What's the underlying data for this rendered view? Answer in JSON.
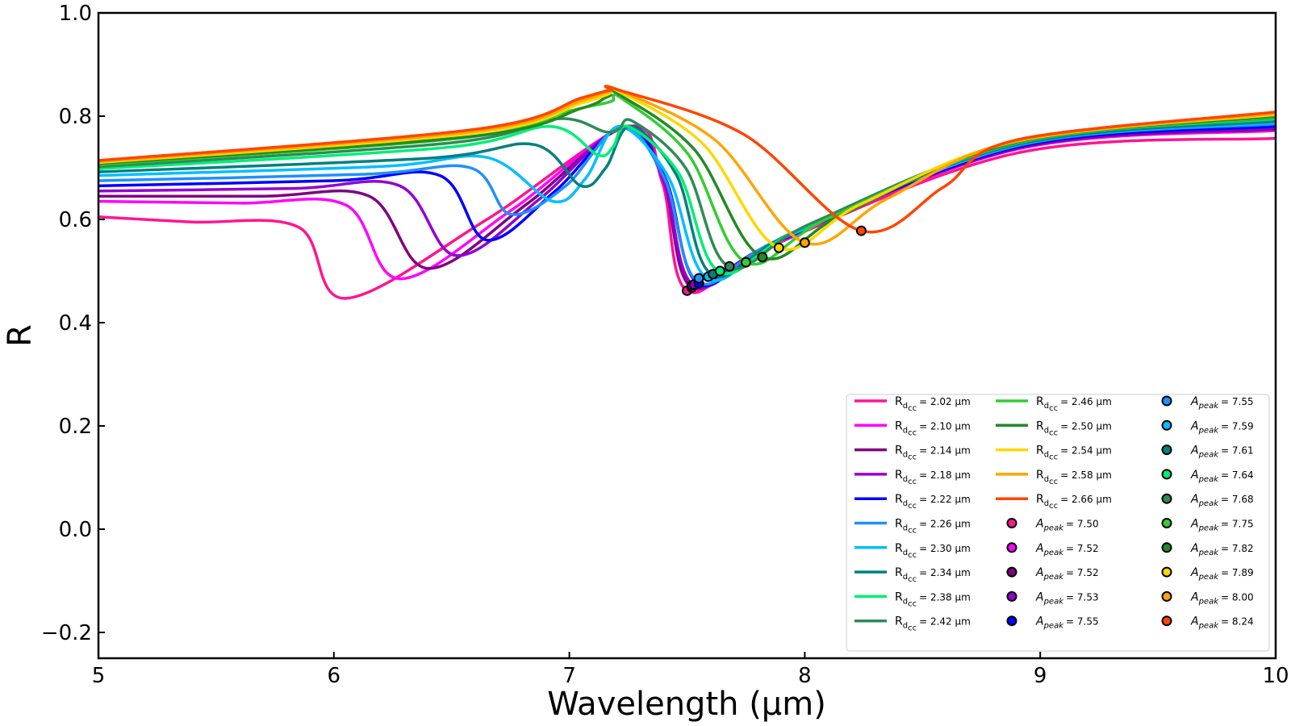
{
  "chart_data": {
    "type": "line",
    "title": "",
    "xlabel": "Wavelength (μm)",
    "ylabel": "R",
    "xlim": [
      5,
      10
    ],
    "ylim": [
      -0.25,
      1.0
    ],
    "xticks": [
      5,
      6,
      7,
      8,
      9,
      10
    ],
    "xtick_labels": [
      "5",
      "6",
      "7",
      "8",
      "9",
      "10"
    ],
    "yticks": [
      -0.2,
      0.0,
      0.2,
      0.4,
      0.6,
      0.8,
      1.0
    ],
    "ytick_labels": [
      "−0.2",
      "0.0",
      "0.2",
      "0.4",
      "0.6",
      "0.8",
      "1.0"
    ],
    "grid": false,
    "legend_position": "lower-right",
    "legend_columns": 3,
    "series": [
      {
        "legend_main": "R",
        "legend_sub": "d",
        "legend_subsub": "cc",
        "legend_value": "= 2.02 μm",
        "color": "#ff1493",
        "edge": 0.605,
        "shoulder": [
          5.85,
          0.585
        ],
        "dip": [
          6.05,
          0.447
        ],
        "rise": 0.6,
        "peak": [
          7.25,
          0.78
        ],
        "min": [
          7.5,
          0.462
        ],
        "end": 0.757
      },
      {
        "legend_main": "R",
        "legend_sub": "d",
        "legend_subsub": "cc",
        "legend_value": "= 2.10 μm",
        "color": "#ff00ff",
        "edge": 0.635,
        "shoulder": [
          6.05,
          0.628
        ],
        "dip": [
          6.28,
          0.485
        ],
        "rise": 0.62,
        "peak": [
          7.24,
          0.78
        ],
        "min": [
          7.52,
          0.468
        ],
        "end": 0.772
      },
      {
        "legend_main": "R",
        "legend_sub": "d",
        "legend_subsub": "cc",
        "legend_value": "= 2.14 μm",
        "color": "#800080",
        "edge": 0.645,
        "shoulder": [
          6.15,
          0.645
        ],
        "dip": [
          6.4,
          0.505
        ],
        "rise": 0.63,
        "peak": [
          7.24,
          0.78
        ],
        "min": [
          7.52,
          0.47
        ],
        "end": 0.775
      },
      {
        "legend_main": "R",
        "legend_sub": "d",
        "legend_subsub": "cc",
        "legend_value": "= 2.18 μm",
        "color": "#9400d3",
        "edge": 0.655,
        "shoulder": [
          6.28,
          0.665
        ],
        "dip": [
          6.52,
          0.53
        ],
        "rise": 0.64,
        "peak": [
          7.23,
          0.78
        ],
        "min": [
          7.53,
          0.472
        ],
        "end": 0.778
      },
      {
        "legend_main": "R",
        "legend_sub": "d",
        "legend_subsub": "cc",
        "legend_value": "= 2.22 μm",
        "color": "#0000ff",
        "edge": 0.665,
        "shoulder": [
          6.45,
          0.685
        ],
        "dip": [
          6.65,
          0.56
        ],
        "rise": 0.655,
        "peak": [
          7.23,
          0.78
        ],
        "min": [
          7.55,
          0.475
        ],
        "end": 0.78
      },
      {
        "legend_main": "R",
        "legend_sub": "d",
        "legend_subsub": "cc",
        "legend_value": "= 2.26 μm",
        "color": "#1e90ff",
        "edge": 0.675,
        "shoulder": [
          6.58,
          0.7
        ],
        "dip": [
          6.75,
          0.61
        ],
        "rise": 0.665,
        "peak": [
          7.22,
          0.78
        ],
        "min": [
          7.55,
          0.478
        ],
        "end": 0.785
      },
      {
        "legend_main": "R",
        "legend_sub": "d",
        "legend_subsub": "cc",
        "legend_value": "= 2.30 μm",
        "color": "#00bfff",
        "edge": 0.685,
        "shoulder": [
          6.65,
          0.72
        ],
        "dip": [
          6.93,
          0.635
        ],
        "rise": 0.68,
        "peak": [
          7.21,
          0.78
        ],
        "min": [
          7.59,
          0.485
        ],
        "end": 0.788
      },
      {
        "legend_main": "R",
        "legend_sub": "d",
        "legend_subsub": "cc",
        "legend_value": "= 2.34 μm",
        "color": "#008080",
        "edge": 0.692,
        "shoulder": [
          6.85,
          0.745
        ],
        "dip": [
          7.05,
          0.665
        ],
        "rise": 0.7,
        "peak": [
          7.26,
          0.78
        ],
        "min": [
          7.61,
          0.492
        ],
        "end": 0.79
      },
      {
        "legend_main": "R",
        "legend_sub": "d",
        "legend_subsub": "cc",
        "legend_value": "= 2.38 μm",
        "color": "#00ee76",
        "edge": 0.698,
        "shoulder": [
          6.92,
          0.78
        ],
        "dip": [
          7.12,
          0.725
        ],
        "rise": 0.74,
        "peak": [
          7.25,
          0.78
        ],
        "min": [
          7.64,
          0.498
        ],
        "end": 0.795
      },
      {
        "legend_main": "R",
        "legend_sub": "d",
        "legend_subsub": "cc",
        "legend_value": "= 2.42 μm",
        "color": "#2e8b57",
        "edge": 0.702,
        "shoulder": [
          6.95,
          0.795
        ],
        "dip": [
          7.15,
          0.77
        ],
        "rise": 0.775,
        "peak": [
          7.27,
          0.79
        ],
        "min": [
          7.68,
          0.508
        ],
        "end": 0.797
      },
      {
        "legend_main": "R",
        "legend_sub": "d",
        "legend_subsub": "cc",
        "legend_value": "= 2.46 μm",
        "color": "#32cd32",
        "edge": 0.706,
        "shoulder": [
          7.0,
          0.81
        ],
        "dip": [
          7.15,
          0.825
        ],
        "rise": 0.83,
        "peak": [
          7.22,
          0.835
        ],
        "min": [
          7.75,
          0.517
        ],
        "end": 0.798
      },
      {
        "legend_main": "R",
        "legend_sub": "d",
        "legend_subsub": "cc",
        "legend_value": "= 2.50 μm",
        "color": "#228b22",
        "edge": 0.708,
        "shoulder": [
          7.05,
          0.815
        ],
        "dip": [
          7.15,
          0.835
        ],
        "rise": 0.84,
        "peak": [
          7.2,
          0.845
        ],
        "min": [
          7.82,
          0.527
        ],
        "end": 0.8
      },
      {
        "legend_main": "R",
        "legend_sub": "d",
        "legend_subsub": "cc",
        "legend_value": "= 2.54 μm",
        "color": "#ffd700",
        "edge": 0.71,
        "shoulder": [
          7.05,
          0.825
        ],
        "dip": [
          7.15,
          0.84
        ],
        "rise": 0.845,
        "peak": [
          7.2,
          0.85
        ],
        "min": [
          7.89,
          0.545
        ],
        "end": 0.803
      },
      {
        "legend_main": "R",
        "legend_sub": "d",
        "legend_subsub": "cc",
        "legend_value": "= 2.58 μm",
        "color": "#ffa500",
        "edge": 0.712,
        "shoulder": [
          7.05,
          0.83
        ],
        "dip": [
          7.15,
          0.845
        ],
        "rise": 0.848,
        "peak": [
          7.2,
          0.852
        ],
        "min": [
          8.0,
          0.555
        ],
        "end": 0.805
      },
      {
        "legend_main": "R",
        "legend_sub": "d",
        "legend_subsub": "cc",
        "legend_value": "= 2.66 μm",
        "color": "#ff4500",
        "edge": 0.714,
        "shoulder": [
          7.05,
          0.835
        ],
        "dip": [
          7.15,
          0.848
        ],
        "rise": 0.85,
        "peak": [
          7.2,
          0.852
        ],
        "min": [
          8.24,
          0.578
        ],
        "end": 0.808
      }
    ],
    "markers": [
      {
        "legend_main": "A",
        "legend_sub": "peak",
        "legend_value": "= 7.50",
        "color": "#ff1493",
        "x": 7.5,
        "y": 0.462
      },
      {
        "legend_main": "A",
        "legend_sub": "peak",
        "legend_value": "= 7.52",
        "color": "#ff00ff",
        "x": 7.52,
        "y": 0.468
      },
      {
        "legend_main": "A",
        "legend_sub": "peak",
        "legend_value": "= 7.52",
        "color": "#800080",
        "x": 7.52,
        "y": 0.472
      },
      {
        "legend_main": "A",
        "legend_sub": "peak",
        "legend_value": "= 7.53",
        "color": "#9400d3",
        "x": 7.53,
        "y": 0.474
      },
      {
        "legend_main": "A",
        "legend_sub": "peak",
        "legend_value": "= 7.55",
        "color": "#0000ff",
        "x": 7.55,
        "y": 0.476
      },
      {
        "legend_main": "A",
        "legend_sub": "peak",
        "legend_value": "= 7.55",
        "color": "#1e90ff",
        "x": 7.55,
        "y": 0.486
      },
      {
        "legend_main": "A",
        "legend_sub": "peak",
        "legend_value": "= 7.59",
        "color": "#00bfff",
        "x": 7.59,
        "y": 0.489
      },
      {
        "legend_main": "A",
        "legend_sub": "peak",
        "legend_value": "= 7.61",
        "color": "#008080",
        "x": 7.61,
        "y": 0.494
      },
      {
        "legend_main": "A",
        "legend_sub": "peak",
        "legend_value": "= 7.64",
        "color": "#00ee76",
        "x": 7.64,
        "y": 0.5
      },
      {
        "legend_main": "A",
        "legend_sub": "peak",
        "legend_value": "= 7.68",
        "color": "#2e8b57",
        "x": 7.68,
        "y": 0.509
      },
      {
        "legend_main": "A",
        "legend_sub": "peak",
        "legend_value": "= 7.75",
        "color": "#32cd32",
        "x": 7.75,
        "y": 0.517
      },
      {
        "legend_main": "A",
        "legend_sub": "peak",
        "legend_value": "= 7.82",
        "color": "#228b22",
        "x": 7.82,
        "y": 0.527
      },
      {
        "legend_main": "A",
        "legend_sub": "peak",
        "legend_value": "= 7.89",
        "color": "#ffd700",
        "x": 7.89,
        "y": 0.545
      },
      {
        "legend_main": "A",
        "legend_sub": "peak",
        "legend_value": "= 8.00",
        "color": "#ffa500",
        "x": 8.0,
        "y": 0.555
      },
      {
        "legend_main": "A",
        "legend_sub": "peak",
        "legend_value": "= 8.24",
        "color": "#ff4500",
        "x": 8.24,
        "y": 0.578
      }
    ]
  }
}
